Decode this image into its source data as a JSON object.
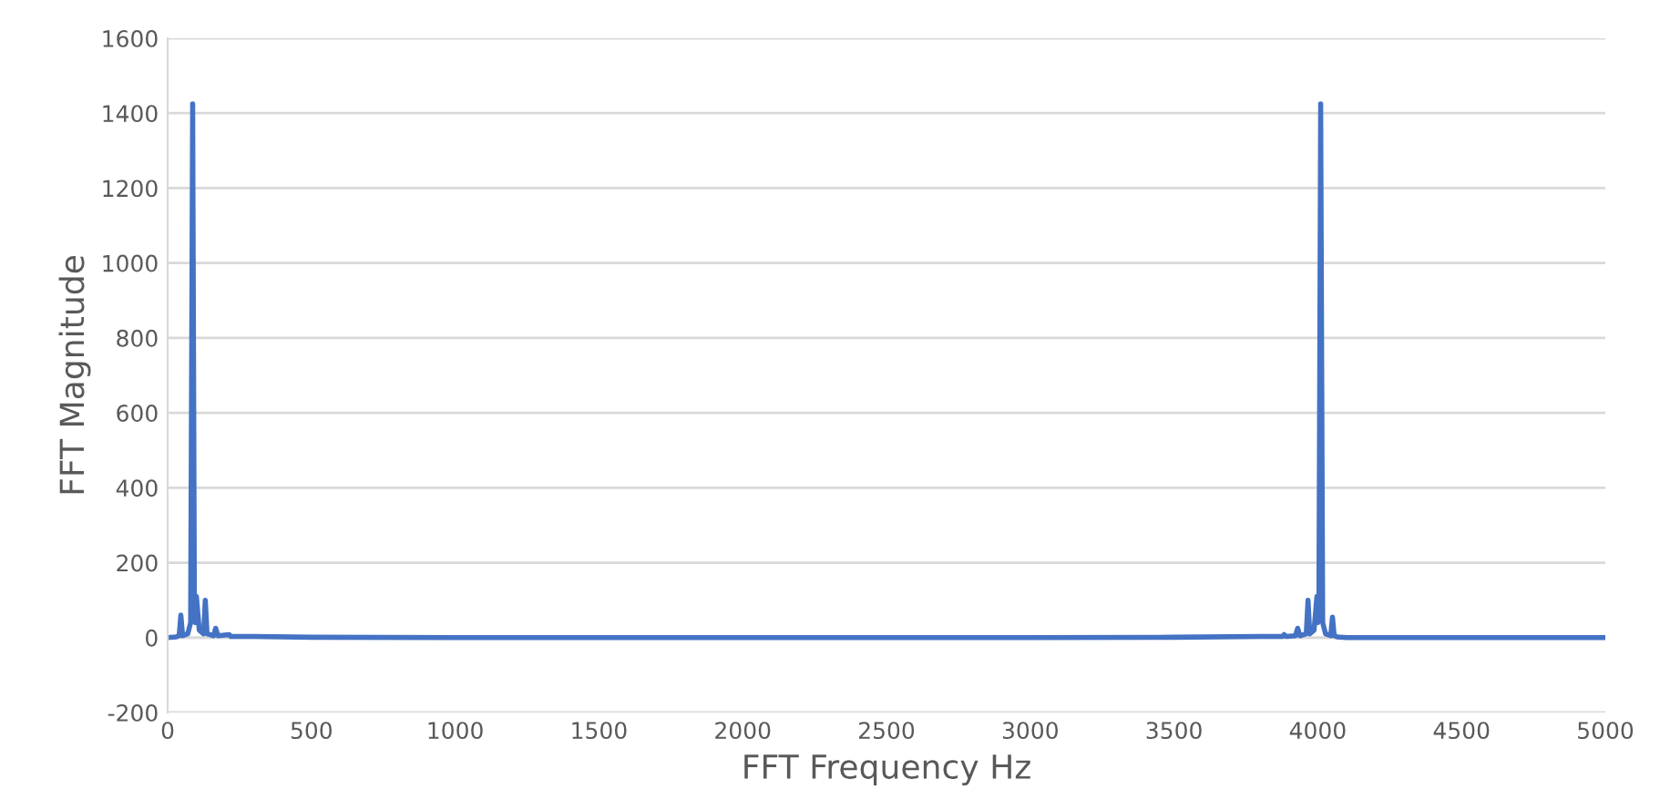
{
  "chart_data": {
    "type": "line",
    "xlabel": "FFT Frequency Hz",
    "ylabel": "FFT Magnitude",
    "x": [
      0,
      30,
      40,
      46,
      52,
      70,
      80,
      87,
      93,
      97,
      100,
      110,
      125,
      131,
      137,
      160,
      167,
      175,
      214,
      220,
      300,
      500,
      1000,
      2000,
      3000,
      3500,
      3800,
      3877,
      3883,
      3890,
      3922,
      3930,
      3938,
      3960,
      3966,
      3972,
      3987,
      3997,
      4000,
      4004,
      4010,
      4017,
      4027,
      4045,
      4051,
      4057,
      4067,
      4100,
      4500,
      5000
    ],
    "values": [
      0,
      2,
      5,
      60,
      5,
      10,
      40,
      1425,
      100,
      40,
      110,
      20,
      10,
      100,
      10,
      5,
      25,
      5,
      8,
      3,
      3,
      1,
      0,
      0,
      0,
      1,
      3,
      3,
      8,
      3,
      5,
      25,
      5,
      10,
      100,
      10,
      20,
      110,
      40,
      100,
      1425,
      40,
      10,
      5,
      55,
      5,
      2,
      0,
      0,
      0
    ],
    "color": "#4472c4",
    "xlim": [
      0,
      5000
    ],
    "ylim": [
      -200,
      1600
    ],
    "xticks": [
      0,
      500,
      1000,
      1500,
      2000,
      2500,
      3000,
      3500,
      4000,
      4500,
      5000
    ],
    "yticks": [
      -200,
      0,
      200,
      400,
      600,
      800,
      1000,
      1200,
      1400,
      1600
    ],
    "grid": "y",
    "marker": "none",
    "line_style": "solid"
  }
}
